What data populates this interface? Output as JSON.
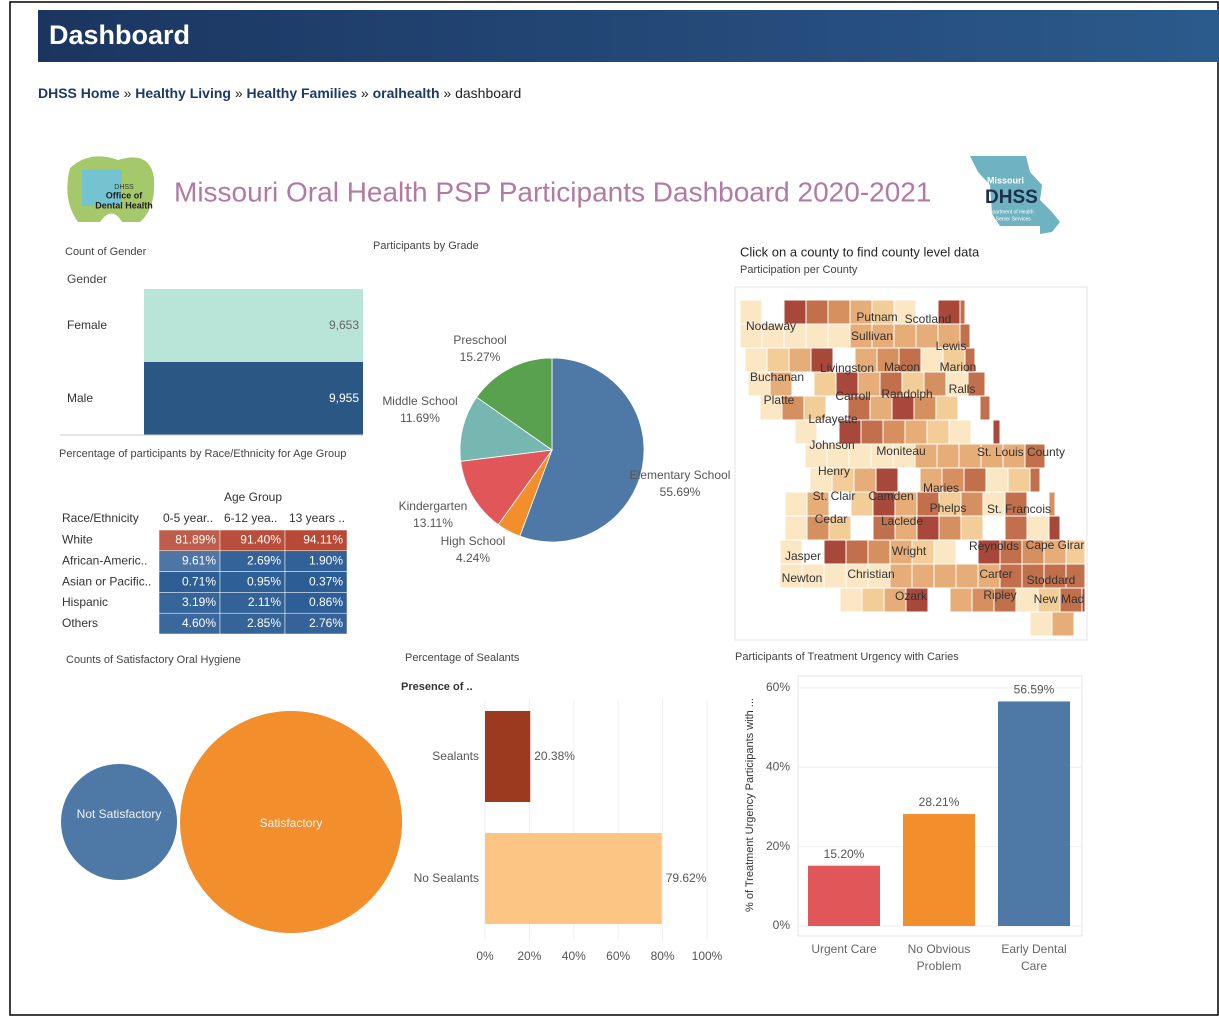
{
  "header": {
    "title": "Dashboard"
  },
  "breadcrumb": {
    "links": [
      "DHSS Home",
      "Healthy Living",
      "Healthy Families",
      "oralhealth"
    ],
    "separator": "»",
    "current": "dashboard"
  },
  "logos": {
    "left": [
      "DHSS",
      "Office of",
      "Dental Health"
    ],
    "right": [
      "Missouri",
      "DHSS",
      "Department of Health",
      "and Senior Services"
    ]
  },
  "dashboard_title": "Missouri Oral Health PSP Participants Dashboard 2020-2021",
  "chart_data": [
    {
      "type": "highlight_table",
      "title": "Count of Gender",
      "column_header": "Gender",
      "categories": [
        "Female",
        "Male"
      ],
      "values": [
        9653,
        9955
      ],
      "value_labels": [
        "9,653",
        "9,955"
      ],
      "colors": [
        "#b9e4d8",
        "#2a5783"
      ]
    },
    {
      "type": "heatmap",
      "title": "Percentage of participants by Race/Ethnicity for Age Group",
      "column_header": "Age Group",
      "row_header": "Race/Ethnicity",
      "columns": [
        "0-5 year..",
        "6-12 yea..",
        "13 years .."
      ],
      "rows": [
        "White",
        "African-Americ..",
        "Asian or Pacific..",
        "Hispanic",
        "Others"
      ],
      "values": [
        [
          81.89,
          91.4,
          94.11
        ],
        [
          9.61,
          2.69,
          1.9
        ],
        [
          0.71,
          0.95,
          0.37
        ],
        [
          3.19,
          2.11,
          0.86
        ],
        [
          4.6,
          2.85,
          2.76
        ]
      ],
      "value_labels": [
        [
          "81.89%",
          "91.40%",
          "94.11%"
        ],
        [
          "9.61%",
          "2.69%",
          "1.90%"
        ],
        [
          "0.71%",
          "0.95%",
          "0.37%"
        ],
        [
          "3.19%",
          "2.11%",
          "0.86%"
        ],
        [
          "4.60%",
          "2.85%",
          "2.76%"
        ]
      ],
      "colors": [
        "#2b5c94",
        "#eef1f5",
        "#b5402a"
      ]
    },
    {
      "type": "pie",
      "title": "Participants by Grade",
      "categories": [
        "Elementary School",
        "High School",
        "Kindergarten",
        "Middle School",
        "Preschool"
      ],
      "values": [
        55.69,
        4.24,
        13.11,
        11.69,
        15.27
      ],
      "value_labels": [
        "55.69%",
        "4.24%",
        "13.11%",
        "11.69%",
        "15.27%"
      ],
      "colors": [
        "#4e79a7",
        "#f28e2b",
        "#e15759",
        "#76b7b2",
        "#59a14f"
      ]
    },
    {
      "type": "map",
      "title": "Click on a county to find county level data",
      "subtitle": "Participation per County",
      "county_labels": [
        "Nodaway",
        "Putnam",
        "Scotland",
        "Sullivan",
        "Lewis",
        "Buchanan",
        "Livingston",
        "Macon",
        "Marion",
        "Platte",
        "Carroll",
        "Randolph",
        "Ralls",
        "Lafayette",
        "Johnson",
        "Moniteau",
        "St. Louis County",
        "Henry",
        "Maries",
        "St. Clair",
        "Camden",
        "Phelps",
        "St. Francois",
        "Cedar",
        "Laclede",
        "Wright",
        "Reynolds",
        "Cape Girar",
        "Jasper",
        "Christian",
        "Carter",
        "Stoddard",
        "Newton",
        "Ozark",
        "Ripley",
        "New Mad"
      ],
      "colors": [
        "#fbe7c3",
        "#f2cd97",
        "#e6ad78",
        "#d68f5e",
        "#c2704b",
        "#a8483a",
        "#ffffff"
      ]
    },
    {
      "type": "bubble",
      "title": "Counts of Satisfactory Oral Hygiene",
      "categories": [
        "Not Satisfactory",
        "Satisfactory"
      ],
      "values": [
        4208,
        15400
      ],
      "colors": [
        "#4e79a7",
        "#f28e2b"
      ]
    },
    {
      "type": "hbar",
      "title": "Percentage of Sealants",
      "column_header": "Presence of ..",
      "categories": [
        "Sealants",
        "No Sealants"
      ],
      "values": [
        20.38,
        79.62
      ],
      "value_labels": [
        "20.38%",
        "79.62%"
      ],
      "colors": [
        "#9c3a1f",
        "#fdc584"
      ],
      "xlim": [
        0,
        100
      ],
      "xticks": [
        {
          "value": 0,
          "label": "0%"
        },
        {
          "value": 20,
          "label": "20%"
        },
        {
          "value": 40,
          "label": "40%"
        },
        {
          "value": 60,
          "label": "60%"
        },
        {
          "value": 80,
          "label": "80%"
        },
        {
          "value": 100,
          "label": "100%"
        }
      ],
      "grid": true
    },
    {
      "type": "bar",
      "title": "Participants of Treatment Urgency with Caries",
      "y_label": "% of Treatment Urgency Participants with ...",
      "categories": [
        "Urgent Care",
        "No Obvious Problem",
        "Early Dental Care"
      ],
      "values": [
        15.2,
        28.21,
        56.59
      ],
      "value_labels": [
        "15.20%",
        "28.21%",
        "56.59%"
      ],
      "colors": [
        "#e15759",
        "#f28e2b",
        "#4e79a7"
      ],
      "ylim": [
        0,
        63
      ],
      "yticks": [
        {
          "value": 0,
          "label": "0%"
        },
        {
          "value": 20,
          "label": "20%"
        },
        {
          "value": 40,
          "label": "40%"
        },
        {
          "value": 60,
          "label": "60%"
        }
      ],
      "grid": true
    }
  ]
}
